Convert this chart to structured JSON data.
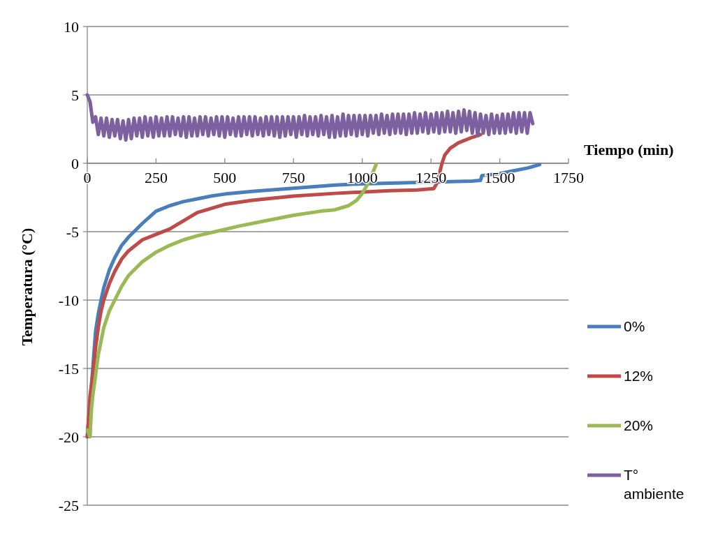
{
  "chart_data": {
    "type": "line",
    "xlabel": "Tiempo (min)",
    "ylabel": "Temperatura (°C)",
    "xlim": [
      0,
      1750
    ],
    "xticks": [
      0,
      250,
      500,
      750,
      1000,
      1250,
      1500,
      1750
    ],
    "ylim": [
      -25,
      10
    ],
    "yticks": [
      -25,
      -20,
      -15,
      -10,
      -5,
      0,
      5,
      10
    ],
    "grid": "y",
    "legend": "right",
    "marker": "none",
    "line_style": "solid",
    "series": [
      {
        "name": "0%",
        "color": "#4a7ebb",
        "x": [
          0,
          20,
          30,
          40,
          50,
          60,
          80,
          100,
          125,
          150,
          175,
          200,
          250,
          300,
          350,
          400,
          450,
          500,
          600,
          700,
          800,
          900,
          1000,
          1100,
          1200,
          1300,
          1400,
          1430,
          1435,
          1500,
          1550,
          1600,
          1645
        ],
        "values": [
          -20,
          -15,
          -12.3,
          -11,
          -10,
          -9.1,
          -7.8,
          -6.9,
          -6.0,
          -5.4,
          -4.9,
          -4.4,
          -3.5,
          -3.1,
          -2.8,
          -2.6,
          -2.4,
          -2.25,
          -2.05,
          -1.9,
          -1.75,
          -1.6,
          -1.5,
          -1.45,
          -1.4,
          -1.35,
          -1.3,
          -1.25,
          -0.9,
          -0.75,
          -0.55,
          -0.35,
          -0.1
        ]
      },
      {
        "name": "12%",
        "color": "#be4b48",
        "x": [
          0,
          10,
          20,
          30,
          40,
          50,
          60,
          80,
          100,
          125,
          150,
          200,
          250,
          300,
          400,
          500,
          600,
          750,
          900,
          1000,
          1100,
          1200,
          1260,
          1270,
          1280,
          1290,
          1300,
          1320,
          1350,
          1400,
          1430
        ],
        "values": [
          -20,
          -17,
          -15.5,
          -13.5,
          -12,
          -10.8,
          -10,
          -8.8,
          -7.9,
          -7.0,
          -6.4,
          -5.6,
          -5.2,
          -4.8,
          -3.6,
          -3.0,
          -2.7,
          -2.4,
          -2.2,
          -2.1,
          -2.0,
          -1.95,
          -1.85,
          -1.5,
          -0.8,
          0,
          0.6,
          1.1,
          1.5,
          1.9,
          2.1
        ]
      },
      {
        "name": "20%",
        "color": "#98b954",
        "x": [
          0,
          10,
          15,
          20,
          30,
          40,
          60,
          80,
          100,
          125,
          150,
          200,
          250,
          300,
          350,
          400,
          465,
          550,
          650,
          750,
          850,
          900,
          950,
          980,
          1000,
          1020,
          1040,
          1050
        ],
        "values": [
          -19.5,
          -20,
          -18,
          -17,
          -15.5,
          -14,
          -12,
          -10.8,
          -10,
          -9,
          -8.2,
          -7.2,
          -6.5,
          -6,
          -5.6,
          -5.3,
          -5,
          -4.6,
          -4.2,
          -3.8,
          -3.5,
          -3.4,
          -3.1,
          -2.7,
          -2.2,
          -1.5,
          -0.6,
          -0.1
        ]
      },
      {
        "name": "T° ambiente",
        "color": "#7d60a0",
        "x": [
          0,
          10,
          20,
          30,
          40,
          50,
          60,
          70,
          80,
          90,
          100,
          110,
          120,
          130,
          140,
          150,
          160,
          170,
          180,
          190,
          200,
          210,
          220,
          230,
          240,
          250,
          260,
          270,
          280,
          290,
          300,
          310,
          320,
          330,
          340,
          350,
          360,
          370,
          380,
          390,
          400,
          410,
          420,
          430,
          440,
          450,
          460,
          470,
          480,
          490,
          500,
          510,
          520,
          530,
          540,
          550,
          560,
          570,
          580,
          590,
          600,
          610,
          620,
          630,
          640,
          650,
          660,
          670,
          680,
          690,
          700,
          710,
          720,
          730,
          740,
          750,
          760,
          770,
          780,
          790,
          800,
          810,
          820,
          830,
          840,
          850,
          860,
          870,
          880,
          890,
          900,
          910,
          920,
          930,
          940,
          950,
          960,
          970,
          980,
          990,
          1000,
          1010,
          1020,
          1030,
          1040,
          1050,
          1060,
          1070,
          1080,
          1090,
          1100,
          1110,
          1120,
          1130,
          1140,
          1150,
          1160,
          1170,
          1180,
          1190,
          1200,
          1210,
          1220,
          1230,
          1240,
          1250,
          1260,
          1270,
          1280,
          1290,
          1300,
          1310,
          1320,
          1330,
          1340,
          1350,
          1360,
          1370,
          1380,
          1390,
          1400,
          1410,
          1420,
          1430,
          1440,
          1450,
          1460,
          1470,
          1480,
          1490,
          1500,
          1510,
          1520,
          1530,
          1540,
          1550,
          1560,
          1570,
          1580,
          1590,
          1600,
          1610,
          1620
        ],
        "values": [
          5.0,
          4.5,
          3.0,
          3.4,
          2.1,
          3.3,
          2.0,
          3.3,
          1.9,
          3.2,
          2.0,
          3.2,
          1.8,
          3.1,
          1.7,
          3.2,
          1.8,
          3.3,
          2.0,
          3.3,
          1.9,
          3.4,
          2.0,
          3.3,
          1.9,
          3.4,
          2.0,
          3.3,
          2.0,
          3.4,
          2.0,
          3.4,
          2.1,
          3.3,
          2.0,
          3.4,
          1.9,
          3.4,
          2.0,
          3.3,
          2.0,
          3.4,
          2.1,
          3.4,
          2.0,
          3.3,
          2.1,
          3.4,
          2.0,
          3.4,
          1.9,
          3.4,
          2.1,
          3.3,
          2.0,
          3.4,
          2.0,
          3.4,
          2.1,
          3.4,
          2.0,
          3.4,
          2.1,
          3.3,
          2.0,
          3.4,
          2.1,
          3.4,
          2.0,
          3.4,
          1.9,
          3.4,
          2.0,
          3.4,
          2.1,
          3.4,
          1.9,
          3.4,
          2.1,
          3.5,
          2.0,
          3.4,
          2.1,
          3.4,
          2.0,
          3.5,
          2.1,
          3.4,
          1.9,
          3.5,
          1.9,
          3.4,
          2.0,
          3.6,
          2.0,
          3.5,
          2.1,
          3.5,
          2.0,
          3.5,
          2.1,
          3.5,
          2.0,
          3.5,
          2.2,
          3.5,
          2.1,
          3.6,
          2.2,
          3.5,
          2.1,
          3.6,
          2.2,
          3.6,
          2.2,
          3.6,
          2.1,
          3.6,
          2.2,
          3.7,
          2.2,
          3.6,
          2.3,
          3.7,
          2.2,
          3.6,
          2.3,
          3.7,
          2.2,
          3.7,
          2.3,
          3.8,
          2.3,
          3.7,
          2.2,
          3.8,
          2.3,
          3.9,
          2.4,
          3.8,
          2.2,
          3.7,
          2.0,
          3.6,
          2.2,
          3.5,
          2.1,
          3.6,
          2.2,
          3.5,
          2.2,
          3.6,
          2.2,
          3.6,
          2.3,
          3.7,
          2.2,
          3.7,
          2.3,
          3.7,
          2.2,
          3.7,
          2.9
        ]
      }
    ]
  }
}
